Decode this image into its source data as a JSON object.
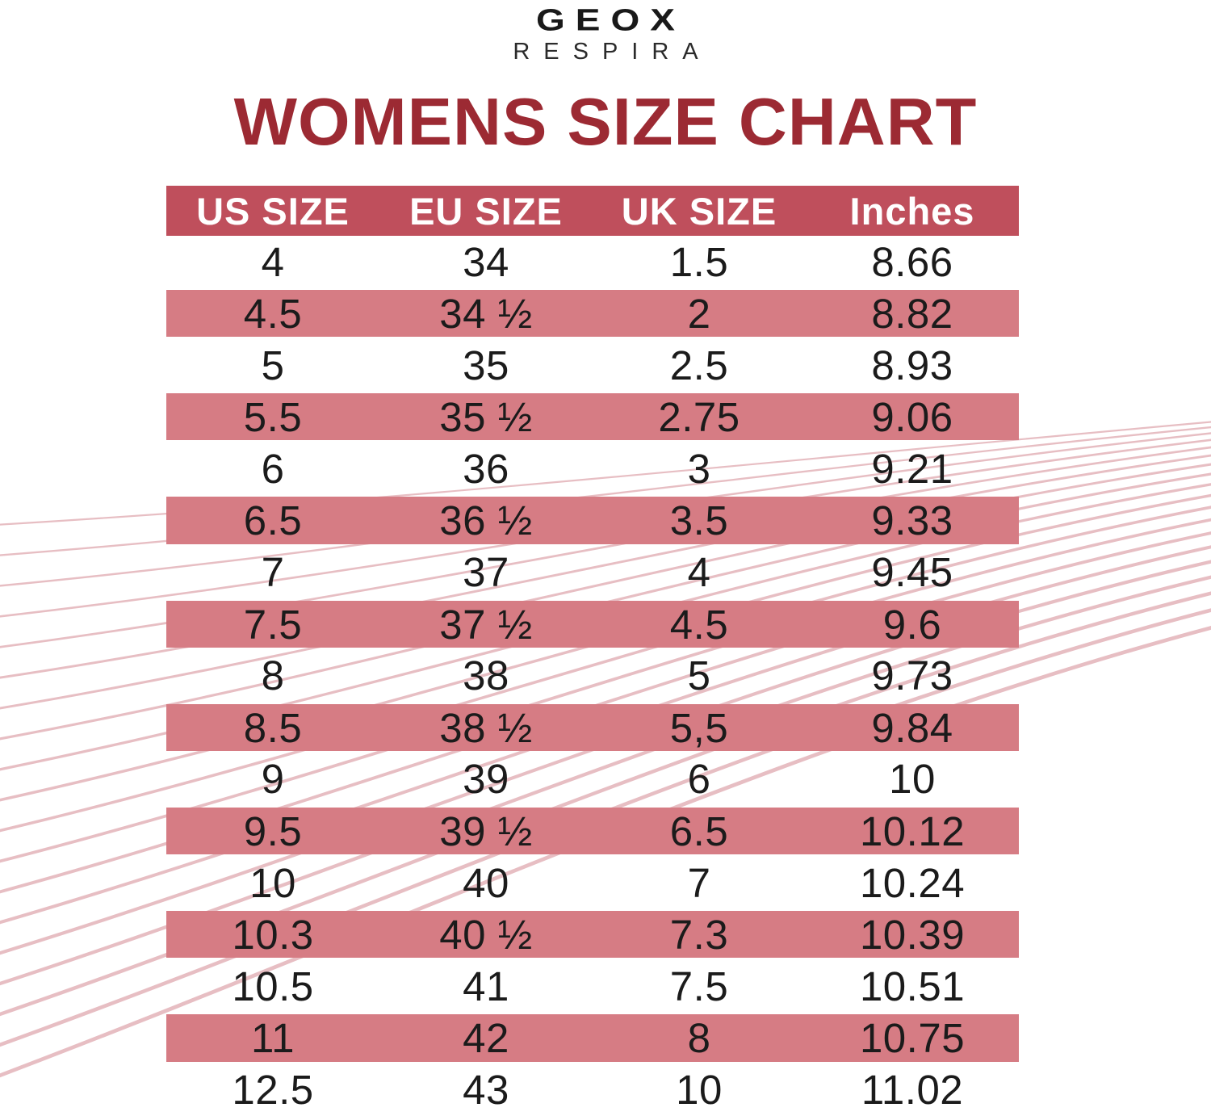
{
  "logo": {
    "brand": "GEOX",
    "subbrand": "RESPIRA"
  },
  "title": "WOMENS SIZE CHART",
  "table": {
    "headers": [
      "US SIZE",
      "EU SIZE",
      "UK SIZE",
      "Inches"
    ],
    "rows": [
      [
        "4",
        "34",
        "1.5",
        "8.66"
      ],
      [
        "4.5",
        "34 ½",
        "2",
        "8.82"
      ],
      [
        "5",
        "35",
        "2.5",
        "8.93"
      ],
      [
        "5.5",
        "35 ½",
        "2.75",
        "9.06"
      ],
      [
        "6",
        "36",
        "3",
        "9.21"
      ],
      [
        "6.5",
        "36 ½",
        "3.5",
        "9.33"
      ],
      [
        "7",
        "37",
        "4",
        "9.45"
      ],
      [
        "7.5",
        "37 ½",
        "4.5",
        "9.6"
      ],
      [
        "8",
        "38",
        "5",
        "9.73"
      ],
      [
        "8.5",
        "38 ½",
        "5,5",
        "9.84"
      ],
      [
        "9",
        "39",
        "6",
        "10"
      ],
      [
        "9.5",
        "39 ½",
        "6.5",
        "10.12"
      ],
      [
        "10",
        "40",
        "7",
        "10.24"
      ],
      [
        "10.3",
        "40 ½",
        "7.3",
        "10.39"
      ],
      [
        "10.5",
        "41",
        "7.5",
        "10.51"
      ],
      [
        "11",
        "42",
        "8",
        "10.75"
      ],
      [
        "12.5",
        "43",
        "10",
        "11.02"
      ]
    ],
    "banded_row_indices": [
      1,
      3,
      5,
      7,
      9,
      11,
      13,
      15
    ]
  },
  "colors": {
    "title": "#9c2a33",
    "header_band": "#bf4f5c",
    "row_band": "#d67c84",
    "header_text": "#ffffff",
    "text": "#1b1b1b",
    "wave_line": "#cf7e88"
  }
}
